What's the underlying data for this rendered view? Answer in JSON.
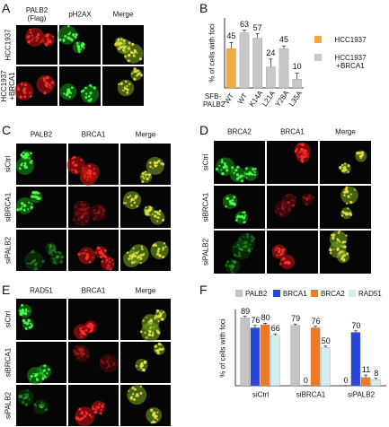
{
  "panels": [
    {
      "letter": "A",
      "columns": [
        "PALB2 (Flag)",
        "pH2AX",
        "Merge"
      ],
      "rows": [
        "HCC1937",
        "HCC1937 +BRCA1"
      ]
    },
    {
      "letter": "B"
    },
    {
      "letter": "C",
      "columns": [
        "PALB2",
        "BRCA1",
        "Merge"
      ],
      "rows": [
        "siCtrl",
        "siBRCA1",
        "siPALB2"
      ]
    },
    {
      "letter": "D",
      "columns": [
        "BRCA2",
        "BRCA1",
        "Merge"
      ],
      "rows": [
        "siCtrl",
        "siBRCA1",
        "siPALB2"
      ]
    },
    {
      "letter": "E",
      "columns": [
        "RAD51",
        "BRCA1",
        "Merge"
      ],
      "rows": [
        "siCtrl",
        "siBRCA1",
        "siPALB2"
      ]
    },
    {
      "letter": "F"
    }
  ],
  "chart_data": [
    {
      "type": "bar",
      "y_label": "% of cells with foci",
      "x_label": "SFB-PALB2",
      "categories": [
        "WT",
        "WT",
        "K14A",
        "L21A",
        "Y28A",
        "L35A"
      ],
      "series": [
        {
          "name": "HCC1937",
          "color": "#f5a93a",
          "values": [
            45,
            null,
            null,
            null,
            null,
            null
          ],
          "errors": [
            7,
            null,
            null,
            null,
            null,
            null
          ]
        },
        {
          "name": "HCC1937 +BRCA1",
          "color": "#c8c8c8",
          "values": [
            null,
            63,
            57,
            24,
            45,
            10
          ],
          "errors": [
            null,
            3,
            5,
            9,
            3,
            7
          ]
        }
      ],
      "ylim": [
        0,
        80
      ]
    },
    {
      "type": "grouped-bar",
      "y_label": "% of cells with foci",
      "categories": [
        "siCtrl",
        "siBRCA1",
        "siPALB2"
      ],
      "series": [
        {
          "name": "PALB2",
          "color": "#c4c4c4",
          "values": [
            89,
            79,
            0
          ],
          "errors": [
            2,
            2,
            0
          ]
        },
        {
          "name": "BRCA1",
          "color": "#2647d8",
          "values": [
            76,
            0,
            70
          ],
          "errors": [
            3,
            0,
            2
          ]
        },
        {
          "name": "BRCA2",
          "color": "#f07a24",
          "values": [
            80,
            76,
            11
          ],
          "errors": [
            2,
            2,
            3
          ]
        },
        {
          "name": "RAD51",
          "color": "#d2eef0",
          "values": [
            66,
            50,
            8
          ],
          "errors": [
            2,
            2,
            2
          ]
        }
      ],
      "ylim": [
        0,
        100
      ]
    }
  ]
}
